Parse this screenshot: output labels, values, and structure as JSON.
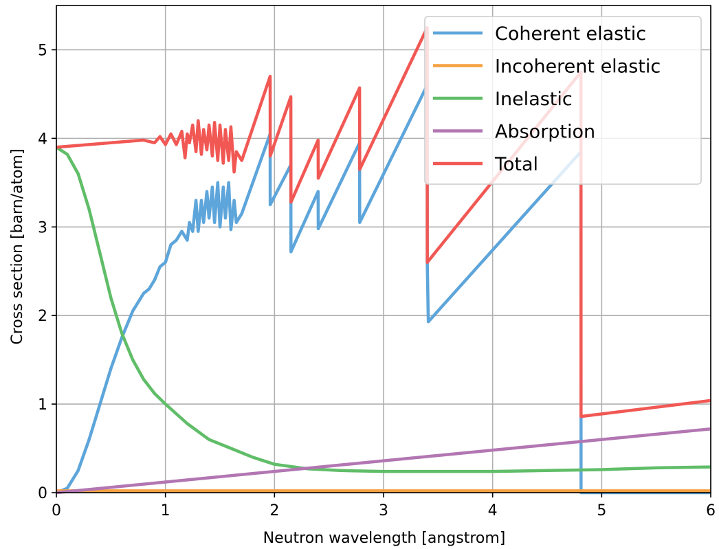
{
  "chart_data": {
    "type": "line",
    "xlabel": "Neutron wavelength [angstrom]",
    "ylabel": "Cross section [barn/atom]",
    "xlim": [
      0,
      6
    ],
    "ylim": [
      0,
      5.5
    ],
    "xticks": [
      "0",
      "1",
      "2",
      "3",
      "4",
      "5",
      "6"
    ],
    "yticks": [
      "0",
      "1",
      "2",
      "3",
      "4",
      "5"
    ],
    "grid": true,
    "legend_position": "top-right",
    "series": [
      {
        "name": "Coherent elastic",
        "color": "#5da5da",
        "x": [
          0,
          0.1,
          0.2,
          0.3,
          0.4,
          0.5,
          0.6,
          0.7,
          0.8,
          0.85,
          0.9,
          0.95,
          1.0,
          1.05,
          1.1,
          1.15,
          1.2,
          1.22,
          1.25,
          1.28,
          1.3,
          1.33,
          1.35,
          1.38,
          1.4,
          1.43,
          1.45,
          1.48,
          1.5,
          1.53,
          1.55,
          1.58,
          1.6,
          1.63,
          1.65,
          1.7,
          1.96,
          1.961,
          2.15,
          2.151,
          2.4,
          2.401,
          2.78,
          2.781,
          3.4,
          3.401,
          3.41,
          4.81,
          4.811,
          4.82,
          6.0
        ],
        "y": [
          0,
          0.05,
          0.25,
          0.6,
          1.0,
          1.4,
          1.75,
          2.05,
          2.25,
          2.3,
          2.4,
          2.55,
          2.6,
          2.8,
          2.85,
          2.95,
          2.85,
          3.05,
          2.95,
          3.3,
          2.95,
          3.3,
          3.05,
          3.4,
          3.1,
          3.45,
          3.05,
          3.5,
          3.0,
          3.45,
          3.1,
          3.5,
          2.97,
          3.3,
          3.05,
          3.15,
          4.05,
          3.25,
          3.7,
          2.72,
          3.4,
          2.98,
          3.95,
          3.05,
          4.6,
          2.6,
          1.93,
          3.85,
          0,
          0,
          0
        ]
      },
      {
        "name": "Incoherent elastic",
        "color": "#f5a142",
        "x": [
          0,
          6.0
        ],
        "y": [
          0.02,
          0.02
        ]
      },
      {
        "name": "Inelastic",
        "color": "#60bd68",
        "x": [
          0,
          0.1,
          0.2,
          0.3,
          0.4,
          0.5,
          0.6,
          0.7,
          0.8,
          0.9,
          1.0,
          1.2,
          1.4,
          1.6,
          1.8,
          2.0,
          2.3,
          2.6,
          3.0,
          3.5,
          4.0,
          4.5,
          5.0,
          5.5,
          6.0
        ],
        "y": [
          3.9,
          3.82,
          3.6,
          3.2,
          2.7,
          2.2,
          1.8,
          1.5,
          1.28,
          1.12,
          1.0,
          0.78,
          0.6,
          0.5,
          0.4,
          0.32,
          0.27,
          0.25,
          0.24,
          0.24,
          0.24,
          0.25,
          0.26,
          0.28,
          0.29
        ]
      },
      {
        "name": "Absorption",
        "color": "#b276b2",
        "x": [
          0,
          6.0
        ],
        "y": [
          0,
          0.72
        ]
      },
      {
        "name": "Total",
        "color": "#f15854",
        "x": [
          0,
          0.5,
          0.8,
          0.9,
          0.95,
          1.0,
          1.05,
          1.1,
          1.15,
          1.18,
          1.2,
          1.22,
          1.25,
          1.28,
          1.3,
          1.33,
          1.35,
          1.38,
          1.4,
          1.43,
          1.45,
          1.48,
          1.5,
          1.53,
          1.55,
          1.58,
          1.6,
          1.63,
          1.65,
          1.7,
          1.96,
          1.961,
          2.15,
          2.151,
          2.4,
          2.401,
          2.78,
          2.781,
          3.4,
          3.401,
          4.81,
          4.811,
          6.0
        ],
        "y": [
          3.9,
          3.95,
          3.98,
          3.95,
          4.02,
          3.93,
          4.05,
          3.93,
          4.08,
          3.78,
          4.05,
          3.95,
          4.15,
          3.85,
          4.2,
          3.82,
          4.1,
          3.87,
          4.15,
          3.8,
          4.18,
          3.75,
          4.15,
          3.72,
          4.1,
          3.75,
          4.13,
          3.62,
          3.85,
          3.75,
          4.7,
          3.8,
          4.47,
          3.28,
          3.98,
          3.55,
          4.57,
          3.65,
          5.25,
          2.6,
          4.75,
          0.86,
          1.04
        ]
      }
    ]
  }
}
